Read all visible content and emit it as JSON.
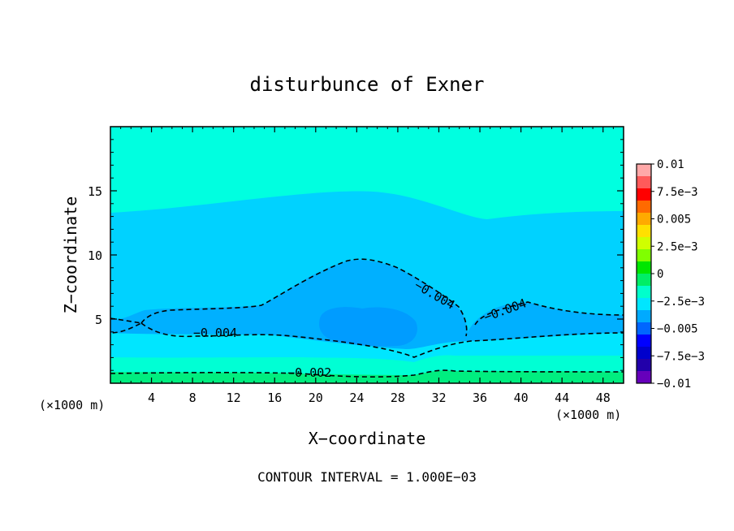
{
  "chart_data": {
    "type": "heatmap",
    "title": "disturbunce of Exner",
    "xlabel": "X−coordinate",
    "ylabel": "Z−coordinate",
    "x_unit_left": "(×1000 m)",
    "x_unit_right": "(×1000 m)",
    "xlim": [
      0,
      50
    ],
    "ylim": [
      0,
      20
    ],
    "x_ticks": [
      4,
      8,
      12,
      16,
      20,
      24,
      28,
      32,
      36,
      40,
      44,
      48
    ],
    "y_ticks": [
      5,
      10,
      15
    ],
    "footer": "CONTOUR INTERVAL = 1.000E−03",
    "colorbar": {
      "range": [
        -0.01,
        0.01
      ],
      "labels": [
        {
          "v": 0.01,
          "t": "0.01"
        },
        {
          "v": 0.0075,
          "t": "7.5e−3"
        },
        {
          "v": 0.005,
          "t": "0.005"
        },
        {
          "v": 0.0025,
          "t": "2.5e−3"
        },
        {
          "v": 0,
          "t": "0"
        },
        {
          "v": -0.0025,
          "t": "−2.5e−3"
        },
        {
          "v": -0.005,
          "t": "−0.005"
        },
        {
          "v": -0.0075,
          "t": "−7.5e−3"
        },
        {
          "v": -0.01,
          "t": "−0.01"
        }
      ],
      "bands": [
        "#ffa8a8",
        "#ff5a5a",
        "#ff0000",
        "#ff6a00",
        "#ffaa00",
        "#ffe000",
        "#d0ff00",
        "#80ff00",
        "#00e600",
        "#00ee66",
        "#00ffcc",
        "#00e6ff",
        "#00aaff",
        "#0066ff",
        "#0000ff",
        "#0000cc",
        "#2200aa",
        "#6600bb"
      ]
    },
    "fill_levels": [
      {
        "name": "fill-upper-cyan",
        "value": -0.002,
        "color": "#00ffe0"
      },
      {
        "name": "fill-middle-blue",
        "value": -0.004,
        "color": "#00d2ff"
      },
      {
        "name": "fill-core-blue",
        "value": -0.005,
        "color": "#00b0ff"
      },
      {
        "name": "fill-core-inner",
        "value": -0.006,
        "color": "#009cff"
      },
      {
        "name": "fill-lower-cyan",
        "value": -0.003,
        "color": "#00ffd4"
      },
      {
        "name": "fill-ground-green",
        "value": -0.001,
        "color": "#00ee80"
      }
    ],
    "contour_labels": [
      {
        "text": "−0.004",
        "x": 10.2,
        "z": 3.6,
        "rot": 0
      },
      {
        "text": "−0.004",
        "x": 31.4,
        "z": 6.6,
        "rot": 30
      },
      {
        "text": "−0.004",
        "x": 38.6,
        "z": 5.4,
        "rot": -20
      },
      {
        "text": "−0.002",
        "x": 19.4,
        "z": 0.5,
        "rot": 0
      }
    ],
    "grid": false
  }
}
